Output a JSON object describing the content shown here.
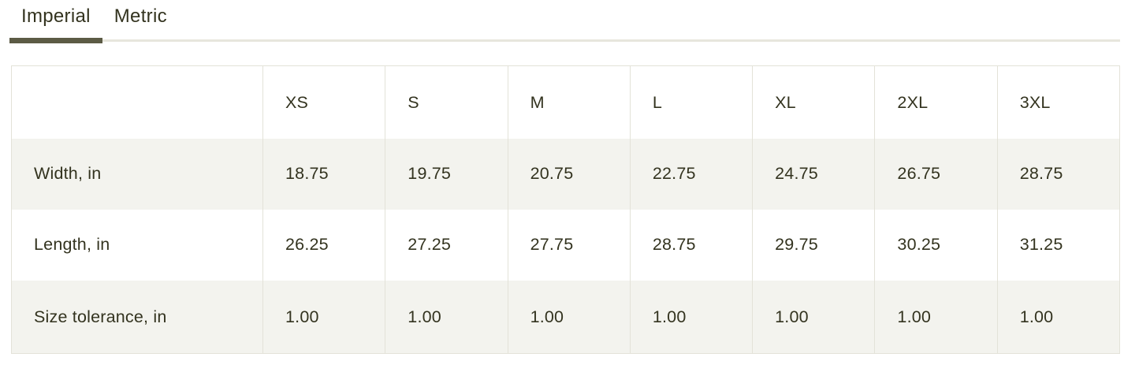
{
  "tabs": {
    "imperial": {
      "label": "Imperial",
      "active": true
    },
    "metric": {
      "label": "Metric",
      "active": false
    }
  },
  "size_table": {
    "columns": [
      "",
      "XS",
      "S",
      "M",
      "L",
      "XL",
      "2XL",
      "3XL"
    ],
    "rows": [
      {
        "label": "Width, in",
        "values": [
          "18.75",
          "19.75",
          "20.75",
          "22.75",
          "24.75",
          "26.75",
          "28.75"
        ]
      },
      {
        "label": "Length, in",
        "values": [
          "26.25",
          "27.25",
          "27.75",
          "28.75",
          "29.75",
          "30.25",
          "31.25"
        ]
      },
      {
        "label": "Size tolerance, in",
        "values": [
          "1.00",
          "1.00",
          "1.00",
          "1.00",
          "1.00",
          "1.00",
          "1.00"
        ]
      }
    ]
  },
  "colors": {
    "accent_dark_olive": "#5c5b45",
    "tab_rail_light": "#e7e6dd",
    "table_border": "#e3e2d8",
    "row_alt_background": "#f3f3ee",
    "text": "#33331f"
  }
}
